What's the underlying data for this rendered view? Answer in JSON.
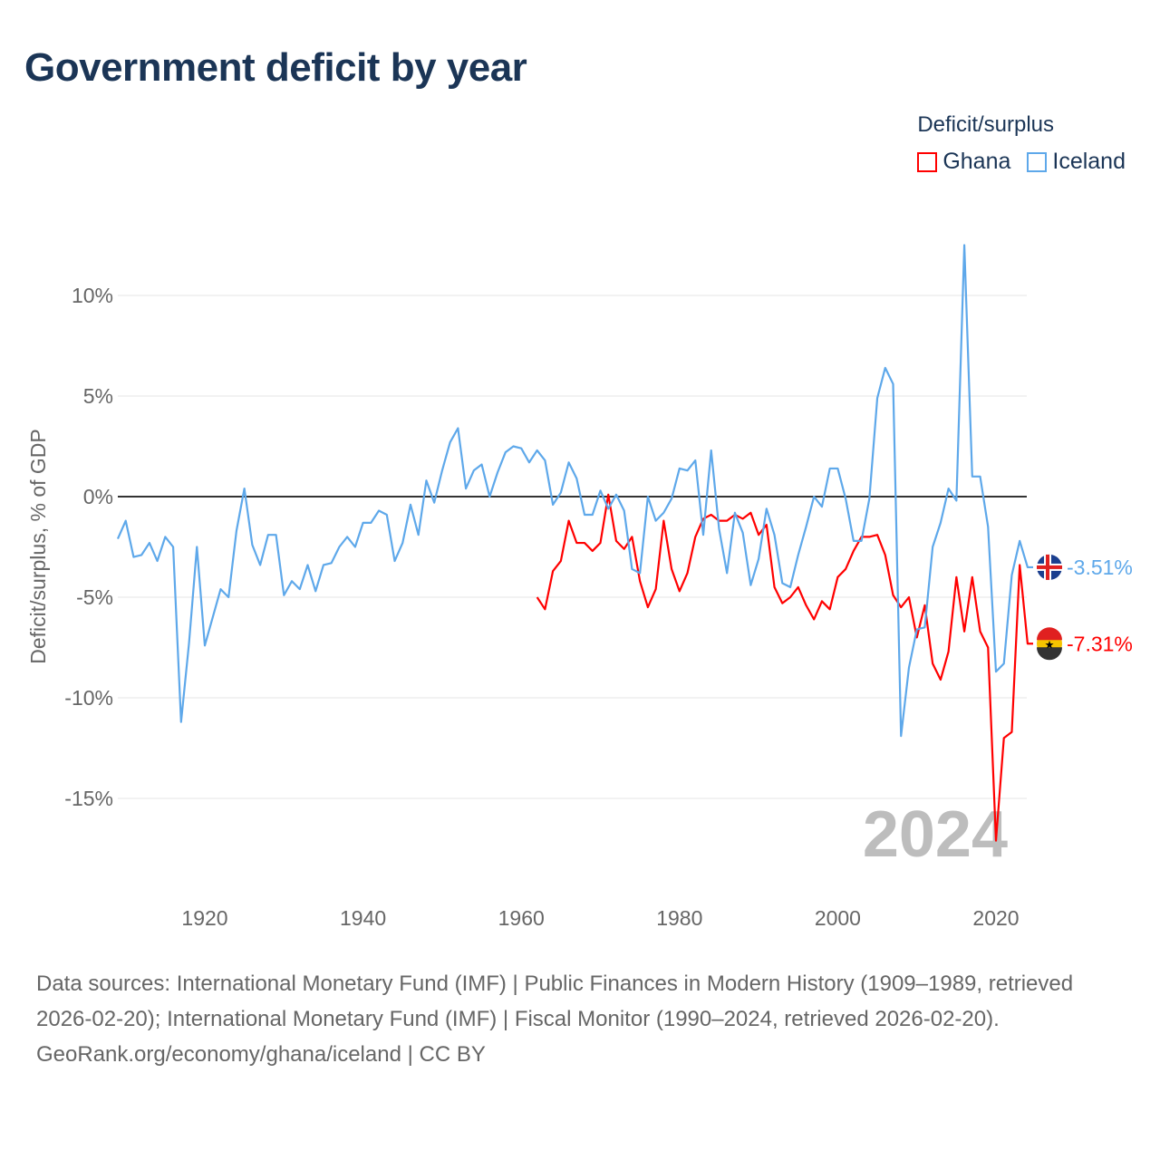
{
  "chart_data": {
    "type": "line",
    "title": "Government deficit by year",
    "xlabel": "",
    "ylabel": "Deficit/surplus, % of GDP",
    "legend_title": "Deficit/surplus",
    "legend_placement": "top-right",
    "xlim": [
      1909,
      2024
    ],
    "ylim": [
      -18,
      13
    ],
    "x_ticks": [
      1920,
      1940,
      1960,
      1980,
      2000,
      2020
    ],
    "x_tick_labels": [
      "1920",
      "1940",
      "1960",
      "1980",
      "2000",
      "2020"
    ],
    "y_ticks": [
      10,
      5,
      0,
      -5,
      -10,
      -15
    ],
    "y_tick_labels": [
      "10%",
      "5%",
      "0%",
      "-5%",
      "-10%",
      "-15%"
    ],
    "year_watermark": "2024",
    "series": [
      {
        "name": "Ghana",
        "color": "#ff0000",
        "start_year": 1962,
        "end_label": "-7.31%",
        "values": [
          -5.0,
          -5.6,
          -3.7,
          -3.2,
          -1.2,
          -2.3,
          -2.3,
          -2.7,
          -2.3,
          0.1,
          -2.2,
          -2.6,
          -2.0,
          -4.2,
          -5.5,
          -4.6,
          -1.2,
          -3.6,
          -4.7,
          -3.8,
          -2.0,
          -1.1,
          -0.9,
          -1.2,
          -1.2,
          -0.9,
          -1.1,
          -0.8,
          -1.9,
          -1.4,
          -4.5,
          -5.3,
          -5.0,
          -4.5,
          -5.4,
          -6.1,
          -5.2,
          -5.6,
          -4.0,
          -3.6,
          -2.7,
          -2.0,
          -2.0,
          -1.9,
          -2.9,
          -4.9,
          -5.5,
          -5.0,
          -7.0,
          -5.4,
          -8.3,
          -9.1,
          -7.7,
          -4.0,
          -6.7,
          -4.0,
          -6.7,
          -7.5,
          -17.1,
          -12.0,
          -11.7,
          -3.4,
          -7.31
        ]
      },
      {
        "name": "Iceland",
        "color": "#5ea8ea",
        "start_year": 1909,
        "end_label": "-3.51%",
        "values": [
          -2.1,
          -1.2,
          -3.0,
          -2.9,
          -2.3,
          -3.2,
          -2.0,
          -2.5,
          -11.2,
          -7.3,
          -2.5,
          -7.4,
          -6.0,
          -4.6,
          -5.0,
          -1.7,
          0.4,
          -2.4,
          -3.4,
          -1.9,
          -1.9,
          -4.9,
          -4.2,
          -4.6,
          -3.4,
          -4.7,
          -3.4,
          -3.3,
          -2.5,
          -2.0,
          -2.5,
          -1.3,
          -1.3,
          -0.7,
          -0.9,
          -3.2,
          -2.3,
          -0.4,
          -1.9,
          0.8,
          -0.3,
          1.3,
          2.7,
          3.4,
          0.4,
          1.3,
          1.6,
          0.0,
          1.2,
          2.2,
          2.5,
          2.4,
          1.7,
          2.3,
          1.8,
          -0.4,
          0.2,
          1.7,
          0.9,
          -0.9,
          -0.9,
          0.3,
          -0.6,
          0.1,
          -0.7,
          -3.6,
          -3.8,
          0.0,
          -1.2,
          -0.8,
          -0.1,
          1.4,
          1.3,
          1.8,
          -1.9,
          2.3,
          -1.6,
          -3.8,
          -0.8,
          -1.8,
          -4.4,
          -3.1,
          -0.6,
          -1.9,
          -4.3,
          -4.5,
          -2.9,
          -1.5,
          0.0,
          -0.5,
          1.4,
          1.4,
          -0.1,
          -2.2,
          -2.2,
          -0.1,
          4.9,
          6.4,
          5.6,
          -11.9,
          -8.5,
          -6.6,
          -6.5,
          -2.5,
          -1.3,
          0.4,
          -0.2,
          12.5,
          1.0,
          1.0,
          -1.5,
          -8.7,
          -8.3,
          -3.9,
          -2.2,
          -3.51
        ]
      }
    ]
  },
  "footer": {
    "sources": "Data sources: International Monetary Fund (IMF) | Public Finances in Modern History (1909–1989, retrieved 2026-02-20); International Monetary Fund (IMF) | Fiscal Monitor (1990–2024, retrieved 2026-02-20).",
    "credit": "GeoRank.org/economy/ghana/iceland | CC BY"
  }
}
